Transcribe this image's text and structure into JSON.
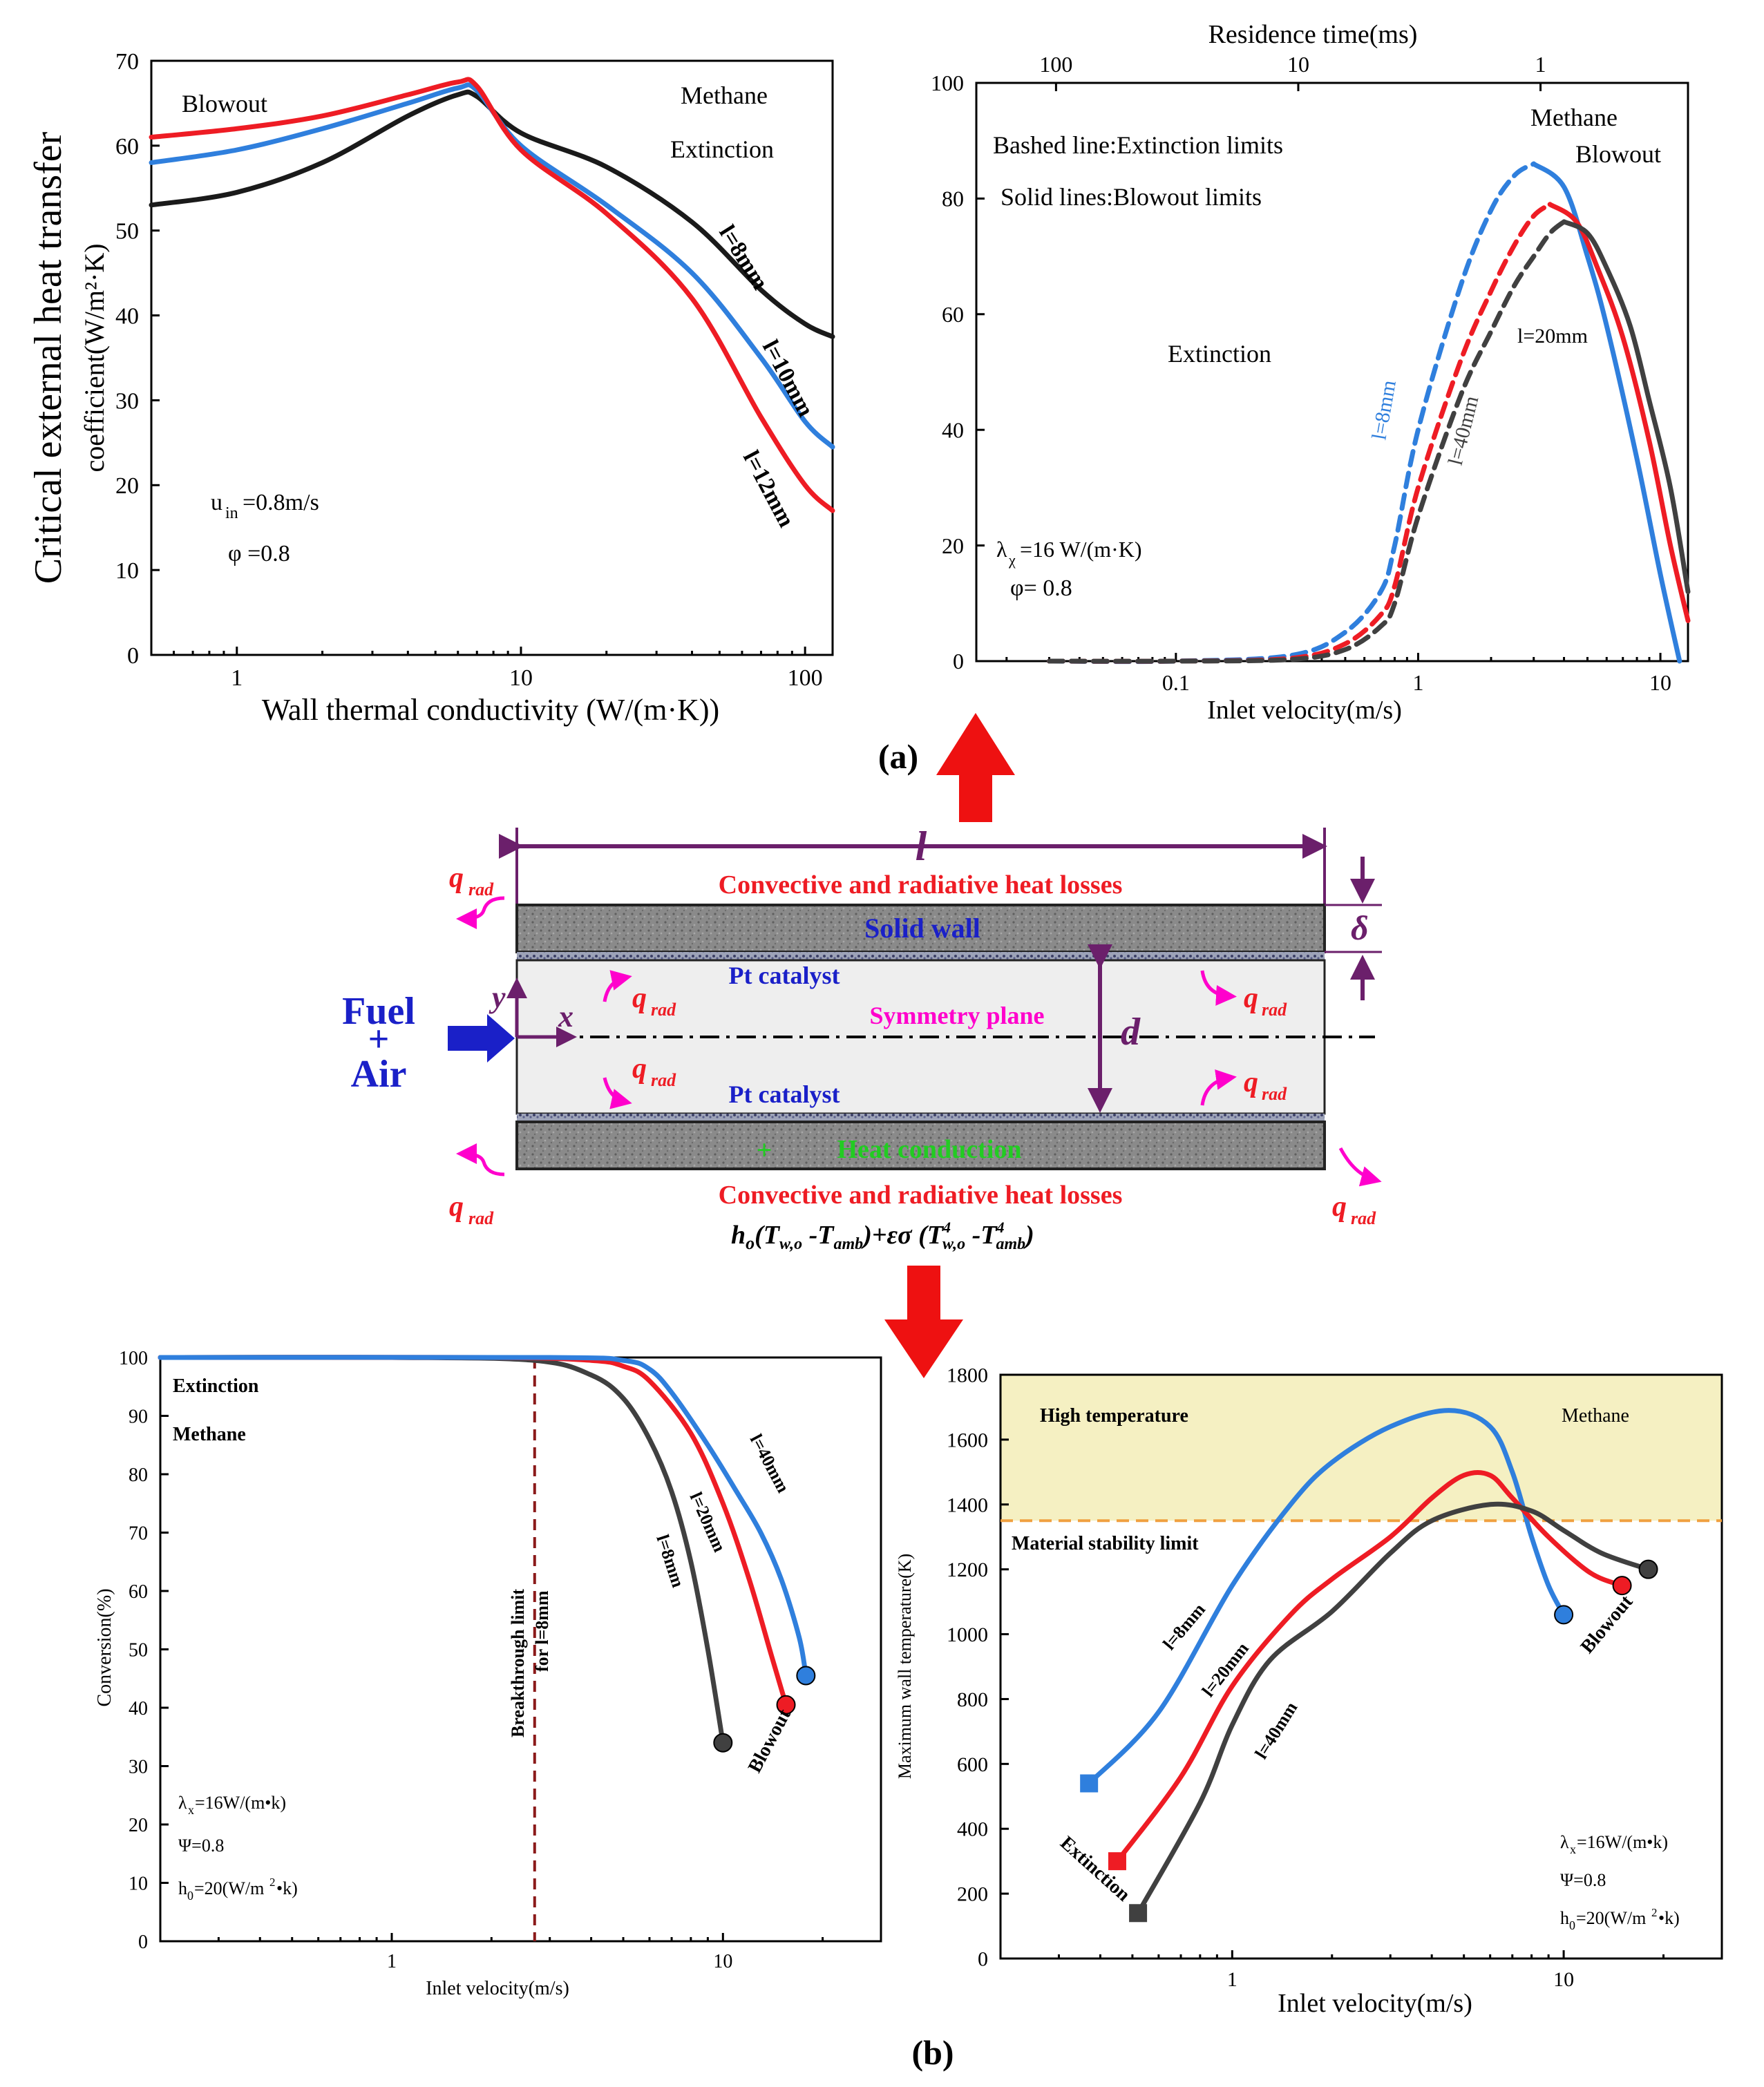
{
  "colors": {
    "black": "#1a1a1a",
    "blue": "#2f7fdd",
    "red": "#ee1c24",
    "gray": "#404040",
    "purple": "#6b1f6b",
    "magenta": "#ff00cc",
    "green": "#22cc22",
    "wall": "#7f7f7f",
    "channel": "#eeeeee",
    "hightemp": "#f5f0c2",
    "arrow": "#ee1111",
    "orange": "#f0a040"
  },
  "figure_labels": {
    "a": "(a)",
    "b": "(b)"
  },
  "chart_data": [
    {
      "id": "a-left",
      "type": "line",
      "xscale": "log",
      "xlim": [
        0.5,
        125
      ],
      "ylim": [
        0,
        70
      ],
      "xticks": [
        1,
        10,
        100
      ],
      "xtick_labels": [
        "1",
        "10",
        "100"
      ],
      "yticks": [
        0,
        10,
        20,
        30,
        40,
        50,
        60,
        70
      ],
      "ytick_labels": [
        "0",
        "10",
        "20",
        "30",
        "40",
        "50",
        "60",
        "70"
      ],
      "xlabel": "Wall  thermal  conductivity  (W/(m·K))",
      "ylabel_line1": "Critical  external heat transfer",
      "ylabel_line2": "coefficient(W/m²·K)",
      "series": [
        {
          "name": "l=8mm",
          "color": "black",
          "x": [
            0.5,
            1,
            2,
            4,
            6,
            7,
            10,
            20,
            40,
            70,
            100,
            125
          ],
          "y": [
            53,
            54.5,
            58,
            63.5,
            66,
            65.8,
            61.5,
            57.5,
            51,
            43,
            39,
            37.5
          ]
        },
        {
          "name": "l=10mm",
          "color": "blue",
          "x": [
            0.5,
            1,
            2,
            4,
            6,
            7,
            10,
            20,
            40,
            70,
            100,
            125
          ],
          "y": [
            58,
            59.5,
            62,
            65,
            66.8,
            66.5,
            60,
            53,
            45,
            35,
            27.5,
            24.5
          ]
        },
        {
          "name": "l=12mm",
          "color": "red",
          "x": [
            0.5,
            1,
            2,
            4,
            6,
            7,
            10,
            20,
            40,
            70,
            100,
            125
          ],
          "y": [
            61,
            62,
            63.5,
            66,
            67.5,
            67,
            59.5,
            52,
            42,
            28,
            20,
            17
          ]
        }
      ],
      "annotations": [
        "Blowout",
        "Methane",
        "Extinction",
        "u",
        "in",
        "=0.8m/s",
        "φ =0.8"
      ]
    },
    {
      "id": "a-right",
      "type": "line",
      "xscale": "log",
      "xlim": [
        0.015,
        13
      ],
      "ylim": [
        0,
        100
      ],
      "xticks": [
        0.1,
        1,
        10
      ],
      "xtick_labels": [
        "0.1",
        "1",
        "10"
      ],
      "yticks": [
        0,
        20,
        40,
        60,
        80,
        100
      ],
      "ytick_labels": [
        "0",
        "20",
        "40",
        "60",
        "80",
        "100"
      ],
      "top_ticks": [
        100,
        10,
        1
      ],
      "top_tick_labels": [
        "100",
        "10",
        "1"
      ],
      "xlabel": "Inlet  velocity(m/s)",
      "top_label": "Residence time(ms)",
      "series": [
        {
          "name": "l=8mm",
          "style": "dashed",
          "color": "blue",
          "x": [
            0.03,
            0.1,
            0.3,
            0.5,
            0.7,
            0.8,
            1,
            1.5,
            2,
            2.5,
            3
          ],
          "y": [
            0,
            0,
            1,
            5,
            12,
            20,
            40,
            65,
            78,
            84,
            86
          ]
        },
        {
          "name": "l=8mm",
          "style": "solid",
          "color": "blue",
          "x": [
            3,
            4,
            5,
            6,
            8,
            10,
            12
          ],
          "y": [
            86,
            82,
            70,
            58,
            35,
            15,
            0
          ]
        },
        {
          "name": "l=20mm",
          "style": "dashed",
          "color": "red",
          "x": [
            0.03,
            0.1,
            0.3,
            0.5,
            0.7,
            0.8,
            1,
            1.5,
            2,
            2.5,
            3,
            3.5
          ],
          "y": [
            0,
            0,
            0.5,
            3,
            8,
            13,
            30,
            52,
            64,
            72,
            77,
            79
          ]
        },
        {
          "name": "l=20mm",
          "style": "solid",
          "color": "red",
          "x": [
            3.5,
            4.5,
            5.5,
            7,
            9,
            11,
            13
          ],
          "y": [
            79,
            76,
            68,
            56,
            38,
            20,
            7
          ]
        },
        {
          "name": "l=40mm",
          "style": "dashed",
          "color": "gray",
          "x": [
            0.03,
            0.1,
            0.3,
            0.5,
            0.7,
            0.8,
            1,
            1.5,
            2,
            2.5,
            3,
            3.5,
            4
          ],
          "y": [
            0,
            0,
            0.3,
            2,
            6,
            10,
            25,
            46,
            57,
            65,
            70,
            74,
            76
          ]
        },
        {
          "name": "l=40mm",
          "style": "solid",
          "color": "gray",
          "x": [
            4,
            5,
            6,
            7.5,
            9,
            11,
            13
          ],
          "y": [
            76,
            74,
            68,
            58,
            45,
            30,
            12
          ]
        }
      ],
      "annotations": [
        "Bashed  line:Extinction limits",
        "Solid lines:Blowout limits",
        "Extinction",
        "Methane",
        "Blowout",
        "λ",
        "χ",
        "=16 W/(m·K)",
        "φ= 0.8",
        "l=8mm",
        "l=20mm",
        "l=40mm"
      ]
    },
    {
      "id": "b-left",
      "type": "line",
      "xscale": "log",
      "xlim": [
        0.2,
        30
      ],
      "ylim": [
        0,
        100
      ],
      "xticks": [
        1,
        10
      ],
      "xtick_labels": [
        "1",
        "10"
      ],
      "yticks": [
        0,
        10,
        20,
        30,
        40,
        50,
        60,
        70,
        80,
        90,
        100
      ],
      "ytick_labels": [
        "0",
        "10",
        "20",
        "30",
        "40",
        "50",
        "60",
        "70",
        "80",
        "90",
        "100"
      ],
      "xlabel": "Inlet velocity(m/s)",
      "ylabel": "Conversion(%)",
      "breakthrough_x": 2.7,
      "breakthrough_label": [
        "Breakthrough limit",
        "for l=8mm"
      ],
      "series": [
        {
          "name": "l=8mm",
          "color": "gray",
          "x": [
            0.2,
            1,
            2.7,
            4,
            5,
            6,
            7,
            8,
            9,
            10
          ],
          "y": [
            100,
            100,
            99.5,
            97,
            93,
            86,
            77,
            65,
            50,
            34
          ]
        },
        {
          "name": "l=20mm",
          "color": "red",
          "x": [
            0.2,
            2,
            4,
            5,
            6,
            8,
            10,
            12,
            14,
            15.5
          ],
          "y": [
            100,
            100,
            99.5,
            98.5,
            96,
            87,
            75,
            62,
            49,
            40.5
          ]
        },
        {
          "name": "l=40mm",
          "color": "blue",
          "x": [
            0.2,
            3,
            5,
            6,
            7,
            9,
            11,
            13,
            15,
            17,
            17.8
          ],
          "y": [
            100,
            100,
            99.5,
            98,
            94,
            85,
            77,
            70,
            62,
            52,
            45.5
          ]
        }
      ],
      "annotations": [
        "Extinction",
        "Methane",
        "Blowout",
        "λ",
        "x",
        "=16W/(m•k)",
        "Ψ=0.8",
        "h",
        "0",
        "=20(W/m",
        "2",
        "•k)"
      ]
    },
    {
      "id": "b-right",
      "type": "line",
      "xscale": "log",
      "xlim": [
        0.2,
        30
      ],
      "ylim": [
        0,
        1800
      ],
      "xticks": [
        1,
        10
      ],
      "xtick_labels": [
        "1",
        "10"
      ],
      "yticks": [
        0,
        200,
        400,
        600,
        800,
        1000,
        1200,
        1400,
        1600,
        1800
      ],
      "ytick_labels": [
        "0",
        "200",
        "400",
        "600",
        "800",
        "1000",
        "1200",
        "1400",
        "1600",
        "1800"
      ],
      "xlabel": "Inlet velocity(m/s)",
      "ylabel": "Maximum wall temperature(K)",
      "stability_limit": 1350,
      "series": [
        {
          "name": "l=8mm",
          "color": "blue",
          "x": [
            0.37,
            0.6,
            1,
            1.5,
            2,
            3,
            4.5,
            6,
            7,
            8,
            9,
            10
          ],
          "y": [
            540,
            760,
            1150,
            1400,
            1530,
            1640,
            1690,
            1640,
            1500,
            1300,
            1150,
            1060
          ]
        },
        {
          "name": "l=20mm",
          "color": "red",
          "x": [
            0.45,
            0.7,
            1,
            1.5,
            2,
            3,
            4,
            5,
            6,
            7,
            9,
            12,
            15
          ],
          "y": [
            300,
            560,
            840,
            1060,
            1170,
            1300,
            1420,
            1490,
            1490,
            1420,
            1300,
            1190,
            1150
          ]
        },
        {
          "name": "l=40mm",
          "color": "gray",
          "x": [
            0.52,
            0.8,
            1,
            1.3,
            2,
            3,
            4,
            6,
            8,
            10,
            13,
            18
          ],
          "y": [
            140,
            480,
            720,
            920,
            1070,
            1250,
            1350,
            1400,
            1380,
            1320,
            1250,
            1200
          ]
        }
      ],
      "annotations": [
        "High temperature",
        "Methane",
        "Material stability limit",
        "Extinction",
        "Blowout",
        "l=8mm",
        "l=20mm",
        "l=40mm",
        "λ",
        "x",
        "=16W/(m•k)",
        "Ψ=0.8",
        "h",
        "0",
        "=20(W/m",
        "2",
        "•k)"
      ]
    }
  ],
  "diagram": {
    "length_label": "l",
    "top_losses": "Convective and radiative heat losses",
    "bottom_losses": "Convective and radiative heat losses",
    "solid_wall": "Solid wall",
    "pt_top": "Pt catalyst",
    "pt_bottom": "Pt catalyst",
    "symmetry": "Symmetry plane",
    "heat_conduction": "Heat conduction",
    "fuel": "Fuel",
    "plus": "+",
    "air": "Air",
    "y": "y",
    "x": "x",
    "d": "d",
    "delta": "δ",
    "q": "q",
    "rad": "rad",
    "formula": {
      "h": "h",
      "o": "o",
      "open1": "(T",
      "wo": "w,o",
      "minus": " -T",
      "amb": "amb",
      "close1": ")+",
      "eps": "εσ",
      "open2": " (T",
      "four": "4",
      "close2": ")"
    }
  }
}
